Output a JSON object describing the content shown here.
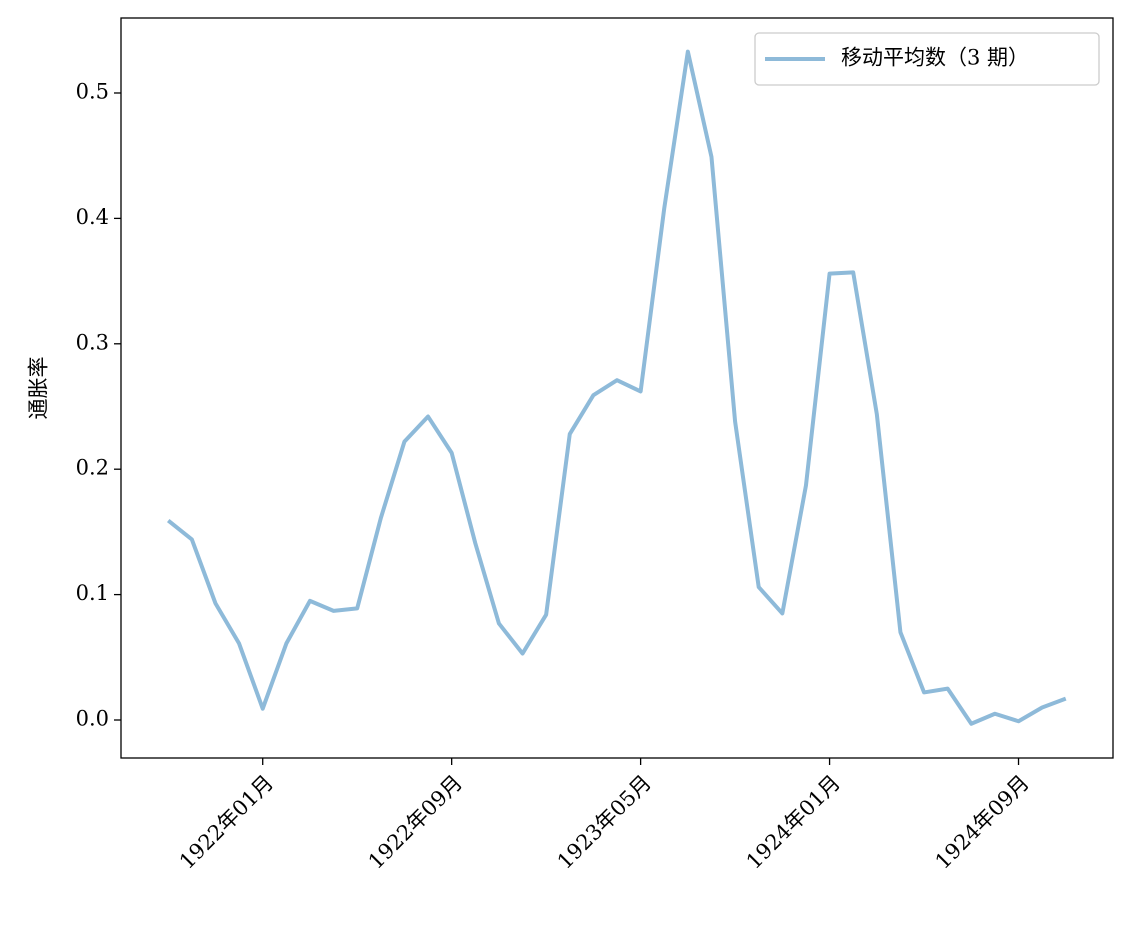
{
  "chart_data": {
    "type": "line",
    "ylabel": "通胀率",
    "x": [
      "1921-09",
      "1921-10",
      "1921-11",
      "1921-12",
      "1922-01",
      "1922-02",
      "1922-03",
      "1922-04",
      "1922-05",
      "1922-06",
      "1922-07",
      "1922-08",
      "1922-09",
      "1922-10",
      "1922-11",
      "1922-12",
      "1923-01",
      "1923-02",
      "1923-03",
      "1923-04",
      "1923-05",
      "1923-06",
      "1923-07",
      "1923-08",
      "1923-09",
      "1923-10",
      "1923-11",
      "1923-12",
      "1924-01",
      "1924-02",
      "1924-03",
      "1924-04",
      "1924-05",
      "1924-06",
      "1924-07",
      "1924-08",
      "1924-09",
      "1924-10",
      "1924-11"
    ],
    "series": [
      {
        "name": "移动平均数（3 期）",
        "color": "#8ebad9",
        "values": [
          0.159,
          0.144,
          0.093,
          0.061,
          0.009,
          0.061,
          0.095,
          0.087,
          0.089,
          0.161,
          0.222,
          0.242,
          0.213,
          0.141,
          0.077,
          0.053,
          0.084,
          0.228,
          0.259,
          0.271,
          0.262,
          0.408,
          0.533,
          0.449,
          0.238,
          0.106,
          0.085,
          0.187,
          0.356,
          0.357,
          0.244,
          0.07,
          0.022,
          0.025,
          -0.003,
          0.005,
          -0.001,
          0.01,
          0.017
        ]
      }
    ],
    "xlim": [
      "1921-07",
      "1925-01"
    ],
    "xticks": [
      {
        "value": "1922-01",
        "label": "1922年01月"
      },
      {
        "value": "1922-09",
        "label": "1922年09月"
      },
      {
        "value": "1923-05",
        "label": "1923年05月"
      },
      {
        "value": "1924-01",
        "label": "1924年01月"
      },
      {
        "value": "1924-09",
        "label": "1924年09月"
      }
    ],
    "ylim": [
      -0.0303,
      0.5598
    ],
    "yticks": [
      {
        "value": 0,
        "label": "0.0"
      },
      0.1,
      0.2,
      0.3,
      0.4,
      0.5
    ],
    "legend": "upper right"
  }
}
